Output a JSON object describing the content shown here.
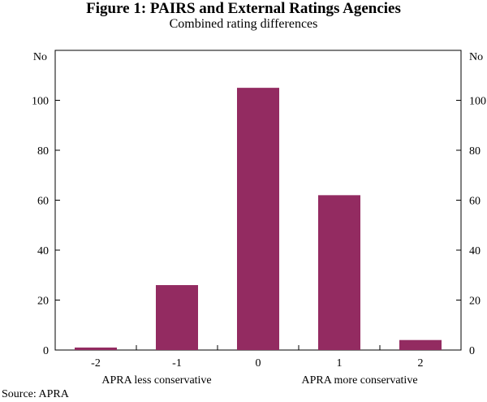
{
  "chart_data": {
    "type": "bar",
    "title": "Figure 1: PAIRS and External Ratings Agencies",
    "subtitle": "Combined rating differences",
    "categories": [
      "-2",
      "-1",
      "0",
      "1",
      "2"
    ],
    "values": [
      1,
      26,
      105,
      62,
      4
    ],
    "left_unit": "No",
    "right_unit": "No",
    "yticks": [
      0,
      20,
      40,
      60,
      80,
      100
    ],
    "ylim": [
      0,
      120
    ],
    "x_annotations": [
      "APRA less conservative",
      "APRA more conservative"
    ],
    "bar_color": "#932b61",
    "grid": false,
    "legend": "none",
    "source": "Source: APRA"
  }
}
